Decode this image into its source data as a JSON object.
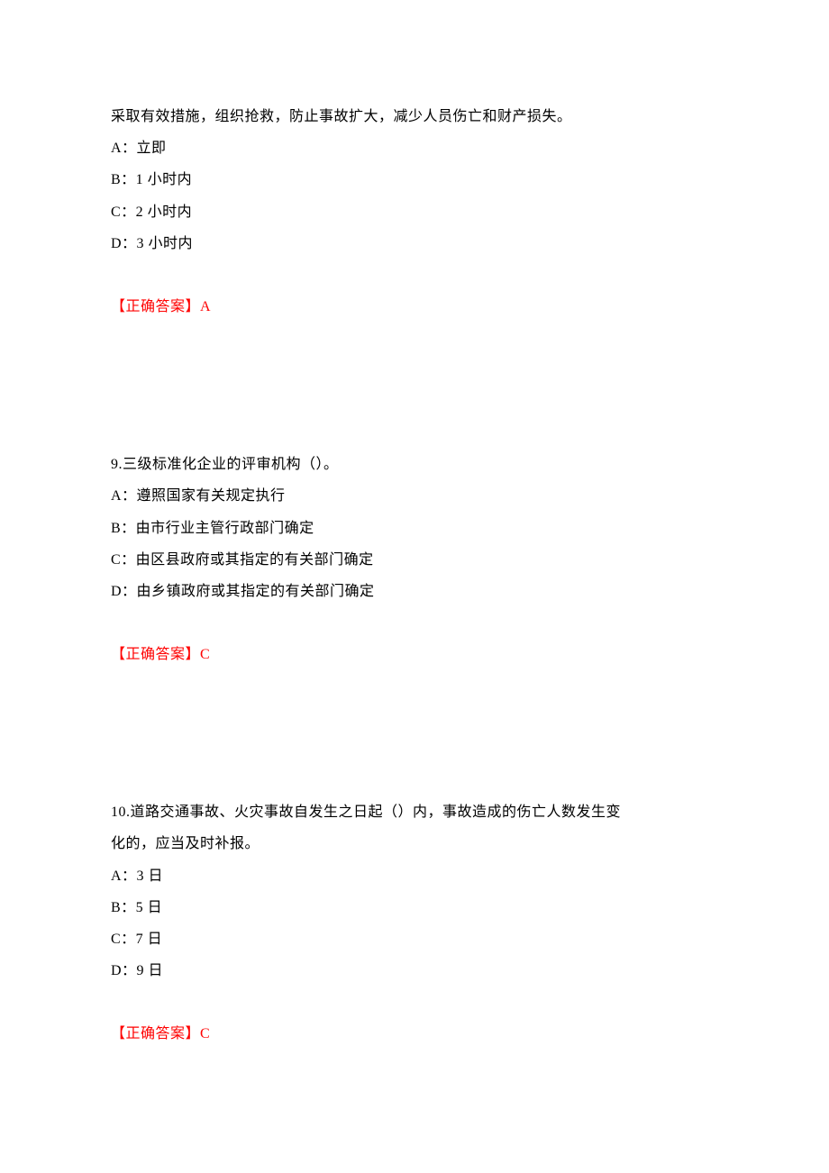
{
  "document": {
    "background_color": "#ffffff",
    "text_color": "#000000",
    "answer_color": "#ff0000",
    "font_size": 16,
    "font_family": "SimSun",
    "line_height": 2.2
  },
  "q8_partial": {
    "stem": "采取有效措施，组织抢救，防止事故扩大，减少人员伤亡和财产损失。",
    "option_a": "A：立即",
    "option_b": "B：1 小时内",
    "option_c": "C：2 小时内",
    "option_d": "D：3 小时内",
    "answer_label": "【正确答案】",
    "answer_value": "A"
  },
  "q9": {
    "stem": "9.三级标准化企业的评审机构（）。",
    "option_a": "A：遵照国家有关规定执行",
    "option_b": "B：由市行业主管行政部门确定",
    "option_c": "C：由区县政府或其指定的有关部门确定",
    "option_d": "D：由乡镇政府或其指定的有关部门确定",
    "answer_label": "【正确答案】",
    "answer_value": "C"
  },
  "q10": {
    "stem_line1": "10.道路交通事故、火灾事故自发生之日起（）内，事故造成的伤亡人数发生变",
    "stem_line2": "化的，应当及时补报。",
    "option_a": "A：3 日",
    "option_b": "B：5 日",
    "option_c": "C：7 日",
    "option_d": "D：9 日",
    "answer_label": "【正确答案】",
    "answer_value": "C"
  }
}
